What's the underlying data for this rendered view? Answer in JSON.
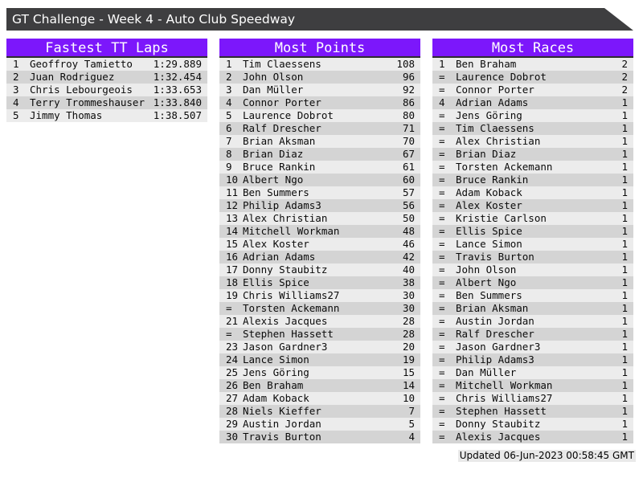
{
  "title_bar": {
    "title": "GT Challenge - Week 4 - Auto Club Speedway"
  },
  "tables": [
    {
      "title": "Fastest TT Laps",
      "rows": [
        {
          "rank": "1",
          "name": "Geoffroy Tamietto",
          "value": "1:29.889"
        },
        {
          "rank": "2",
          "name": "Juan Rodriguez",
          "value": "1:32.454"
        },
        {
          "rank": "3",
          "name": "Chris Lebourgeois",
          "value": "1:33.653"
        },
        {
          "rank": "4",
          "name": "Terry Trommeshauser",
          "value": "1:33.840"
        },
        {
          "rank": "5",
          "name": "Jimmy Thomas",
          "value": "1:38.507"
        }
      ]
    },
    {
      "title": "Most Points",
      "rows": [
        {
          "rank": "1",
          "name": "Tim Claessens",
          "value": "108"
        },
        {
          "rank": "2",
          "name": "John Olson",
          "value": "96"
        },
        {
          "rank": "3",
          "name": "Dan Müller",
          "value": "92"
        },
        {
          "rank": "4",
          "name": "Connor Porter",
          "value": "86"
        },
        {
          "rank": "5",
          "name": "Laurence Dobrot",
          "value": "80"
        },
        {
          "rank": "6",
          "name": "Ralf Drescher",
          "value": "71"
        },
        {
          "rank": "7",
          "name": "Brian Aksman",
          "value": "70"
        },
        {
          "rank": "8",
          "name": "Brian Diaz",
          "value": "67"
        },
        {
          "rank": "9",
          "name": "Bruce Rankin",
          "value": "61"
        },
        {
          "rank": "10",
          "name": "Albert Ngo",
          "value": "60"
        },
        {
          "rank": "11",
          "name": "Ben Summers",
          "value": "57"
        },
        {
          "rank": "12",
          "name": "Philip Adams3",
          "value": "56"
        },
        {
          "rank": "13",
          "name": "Alex Christian",
          "value": "50"
        },
        {
          "rank": "14",
          "name": "Mitchell Workman",
          "value": "48"
        },
        {
          "rank": "15",
          "name": "Alex Koster",
          "value": "46"
        },
        {
          "rank": "16",
          "name": "Adrian Adams",
          "value": "42"
        },
        {
          "rank": "17",
          "name": "Donny Staubitz",
          "value": "40"
        },
        {
          "rank": "18",
          "name": "Ellis Spice",
          "value": "38"
        },
        {
          "rank": "19",
          "name": "Chris Williams27",
          "value": "30"
        },
        {
          "rank": "=",
          "name": "Torsten Ackemann",
          "value": "30"
        },
        {
          "rank": "21",
          "name": "Alexis Jacques",
          "value": "28"
        },
        {
          "rank": "=",
          "name": "Stephen Hassett",
          "value": "28"
        },
        {
          "rank": "23",
          "name": "Jason Gardner3",
          "value": "20"
        },
        {
          "rank": "24",
          "name": "Lance Simon",
          "value": "19"
        },
        {
          "rank": "25",
          "name": "Jens Göring",
          "value": "15"
        },
        {
          "rank": "26",
          "name": "Ben Braham",
          "value": "14"
        },
        {
          "rank": "27",
          "name": "Adam Koback",
          "value": "10"
        },
        {
          "rank": "28",
          "name": "Niels Kieffer",
          "value": "7"
        },
        {
          "rank": "29",
          "name": "Austin Jordan",
          "value": "5"
        },
        {
          "rank": "30",
          "name": "Travis Burton",
          "value": "4"
        }
      ]
    },
    {
      "title": "Most Races",
      "rows": [
        {
          "rank": "1",
          "name": "Ben Braham",
          "value": "2"
        },
        {
          "rank": "=",
          "name": "Laurence Dobrot",
          "value": "2"
        },
        {
          "rank": "=",
          "name": "Connor Porter",
          "value": "2"
        },
        {
          "rank": "4",
          "name": "Adrian Adams",
          "value": "1"
        },
        {
          "rank": "=",
          "name": "Jens Göring",
          "value": "1"
        },
        {
          "rank": "=",
          "name": "Tim Claessens",
          "value": "1"
        },
        {
          "rank": "=",
          "name": "Alex Christian",
          "value": "1"
        },
        {
          "rank": "=",
          "name": "Brian Diaz",
          "value": "1"
        },
        {
          "rank": "=",
          "name": "Torsten Ackemann",
          "value": "1"
        },
        {
          "rank": "=",
          "name": "Bruce Rankin",
          "value": "1"
        },
        {
          "rank": "=",
          "name": "Adam Koback",
          "value": "1"
        },
        {
          "rank": "=",
          "name": "Alex Koster",
          "value": "1"
        },
        {
          "rank": "=",
          "name": "Kristie Carlson",
          "value": "1"
        },
        {
          "rank": "=",
          "name": "Ellis Spice",
          "value": "1"
        },
        {
          "rank": "=",
          "name": "Lance Simon",
          "value": "1"
        },
        {
          "rank": "=",
          "name": "Travis Burton",
          "value": "1"
        },
        {
          "rank": "=",
          "name": "John Olson",
          "value": "1"
        },
        {
          "rank": "=",
          "name": "Albert Ngo",
          "value": "1"
        },
        {
          "rank": "=",
          "name": "Ben Summers",
          "value": "1"
        },
        {
          "rank": "=",
          "name": "Brian Aksman",
          "value": "1"
        },
        {
          "rank": "=",
          "name": "Austin Jordan",
          "value": "1"
        },
        {
          "rank": "=",
          "name": "Ralf Drescher",
          "value": "1"
        },
        {
          "rank": "=",
          "name": "Jason Gardner3",
          "value": "1"
        },
        {
          "rank": "=",
          "name": "Philip Adams3",
          "value": "1"
        },
        {
          "rank": "=",
          "name": "Dan Müller",
          "value": "1"
        },
        {
          "rank": "=",
          "name": "Mitchell Workman",
          "value": "1"
        },
        {
          "rank": "=",
          "name": "Chris Williams27",
          "value": "1"
        },
        {
          "rank": "=",
          "name": "Stephen Hassett",
          "value": "1"
        },
        {
          "rank": "=",
          "name": "Donny Staubitz",
          "value": "1"
        },
        {
          "rank": "=",
          "name": "Alexis Jacques",
          "value": "1"
        }
      ]
    }
  ],
  "footer": {
    "updated": "Updated 06-Jun-2023 00:58:45 GMT"
  },
  "colors": {
    "accent_purple": "#7C17FB",
    "title_bar_bg": "#3E3E40",
    "row_light": "#ECECEC",
    "row_dark": "#D4D4D4",
    "header_border": "#2E2E2E"
  }
}
